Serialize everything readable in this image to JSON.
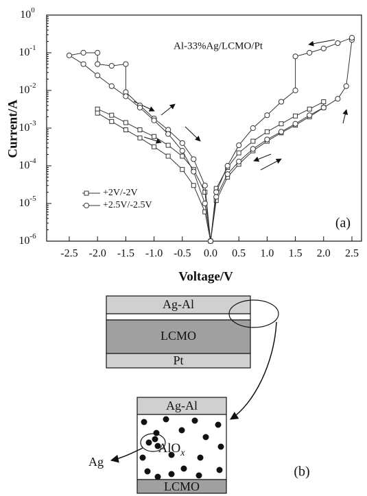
{
  "chart_data": {
    "type": "line",
    "title": "Al-33%Ag/LCMO/Pt",
    "panel_label": "(a)",
    "x_label": "Voltage/V",
    "y_label": "Current/A",
    "log_y": true,
    "legend": "lower left",
    "xlim": [
      -2.9,
      2.67
    ],
    "ylim": [
      1e-06,
      1
    ],
    "xticks": [
      -2.5,
      {
        "value": -2,
        "label": "-2.0"
      },
      -1.5,
      {
        "value": -1,
        "label": "-1.0"
      },
      -0.5,
      {
        "value": 0,
        "label": "0.0"
      },
      0.5,
      {
        "value": 1,
        "label": "1.0"
      },
      1.5,
      {
        "value": 2,
        "label": "2.0"
      },
      2.5
    ],
    "yticks": [
      {
        "value": 1e-06,
        "label": "10",
        "sup": "-6"
      },
      {
        "value": 1e-05,
        "label": "10",
        "sup": "-5"
      },
      {
        "value": 0.0001,
        "label": "10",
        "sup": "-4"
      },
      {
        "value": 0.001,
        "label": "10",
        "sup": "-3"
      },
      {
        "value": 0.01,
        "label": "10",
        "sup": "-2"
      },
      {
        "value": 0.1,
        "label": "10",
        "sup": "-1"
      },
      {
        "value": 1,
        "label": "10",
        "sup": "0"
      }
    ],
    "series": [
      {
        "name": "+2V/-2V",
        "marker": "square",
        "color": "#333333",
        "x": [
          0,
          0.1,
          0.3,
          0.5,
          0.75,
          1.0,
          1.25,
          1.5,
          1.75,
          2.0,
          2.0,
          1.75,
          1.5,
          1.25,
          1.0,
          0.75,
          0.5,
          0.3,
          0.1,
          0,
          -0.1,
          -0.3,
          -0.5,
          -0.75,
          -1.0,
          -1.25,
          -1.5,
          -1.75,
          -2.0,
          -2.0,
          -1.75,
          -1.5,
          -1.25,
          -1.0,
          -0.75,
          -0.5,
          -0.3,
          -0.1,
          0
        ],
        "values": [
          1e-06,
          1.2e-05,
          5e-05,
          0.00011,
          0.00025,
          0.00045,
          0.00075,
          0.0012,
          0.002,
          0.0035,
          0.005,
          0.0032,
          0.0021,
          0.0013,
          0.0008,
          0.00045,
          0.00022,
          9e-05,
          2.5e-05,
          1e-06,
          2e-05,
          8e-05,
          0.00018,
          0.00035,
          0.0006,
          0.0009,
          0.0014,
          0.0022,
          0.0032,
          0.0025,
          0.0015,
          0.0009,
          0.00055,
          0.00032,
          0.00018,
          8e-05,
          3e-05,
          6e-06,
          1e-06
        ]
      },
      {
        "name": "+2.5V/-2.5V",
        "marker": "circle",
        "color": "#333333",
        "x": [
          0,
          0.1,
          0.3,
          0.5,
          0.75,
          1.0,
          1.25,
          1.5,
          1.75,
          2.0,
          2.25,
          2.4,
          2.5,
          2.5,
          2.25,
          2.0,
          1.75,
          1.5,
          1.5,
          1.25,
          1.0,
          0.75,
          0.5,
          0.3,
          0.1,
          0,
          -0.1,
          -0.3,
          -0.5,
          -0.75,
          -1.0,
          -1.25,
          -1.5,
          -1.5,
          -1.75,
          -2.0,
          -2.0,
          -2.25,
          -2.5,
          -2.25,
          -2.0,
          -1.75,
          -1.5,
          -1.25,
          -1.0,
          -0.75,
          -0.5,
          -0.3,
          -0.1,
          0
        ],
        "values": [
          1e-06,
          1.5e-05,
          6e-05,
          0.00013,
          0.00028,
          0.0005,
          0.0008,
          0.0013,
          0.0022,
          0.0035,
          0.006,
          0.013,
          0.22,
          0.25,
          0.18,
          0.13,
          0.1,
          0.08,
          0.01,
          0.005,
          0.0022,
          0.001,
          0.00035,
          0.0001,
          2e-05,
          1e-06,
          3e-05,
          0.00015,
          0.0004,
          0.0009,
          0.0018,
          0.004,
          0.009,
          0.05,
          0.045,
          0.05,
          0.1,
          0.1,
          0.085,
          0.05,
          0.025,
          0.013,
          0.007,
          0.0035,
          0.0016,
          0.0007,
          0.00025,
          7e-05,
          1e-05,
          1e-06
        ]
      }
    ]
  },
  "diagram": {
    "stack": {
      "layers": [
        "Ag-Al",
        "LCMO",
        "Pt"
      ]
    },
    "zoom": {
      "top": "Ag-Al",
      "middle": "AlO",
      "middle_sub": "x",
      "bottom": "LCMO"
    },
    "particle_label": "Ag",
    "panel_label": "(b)"
  }
}
